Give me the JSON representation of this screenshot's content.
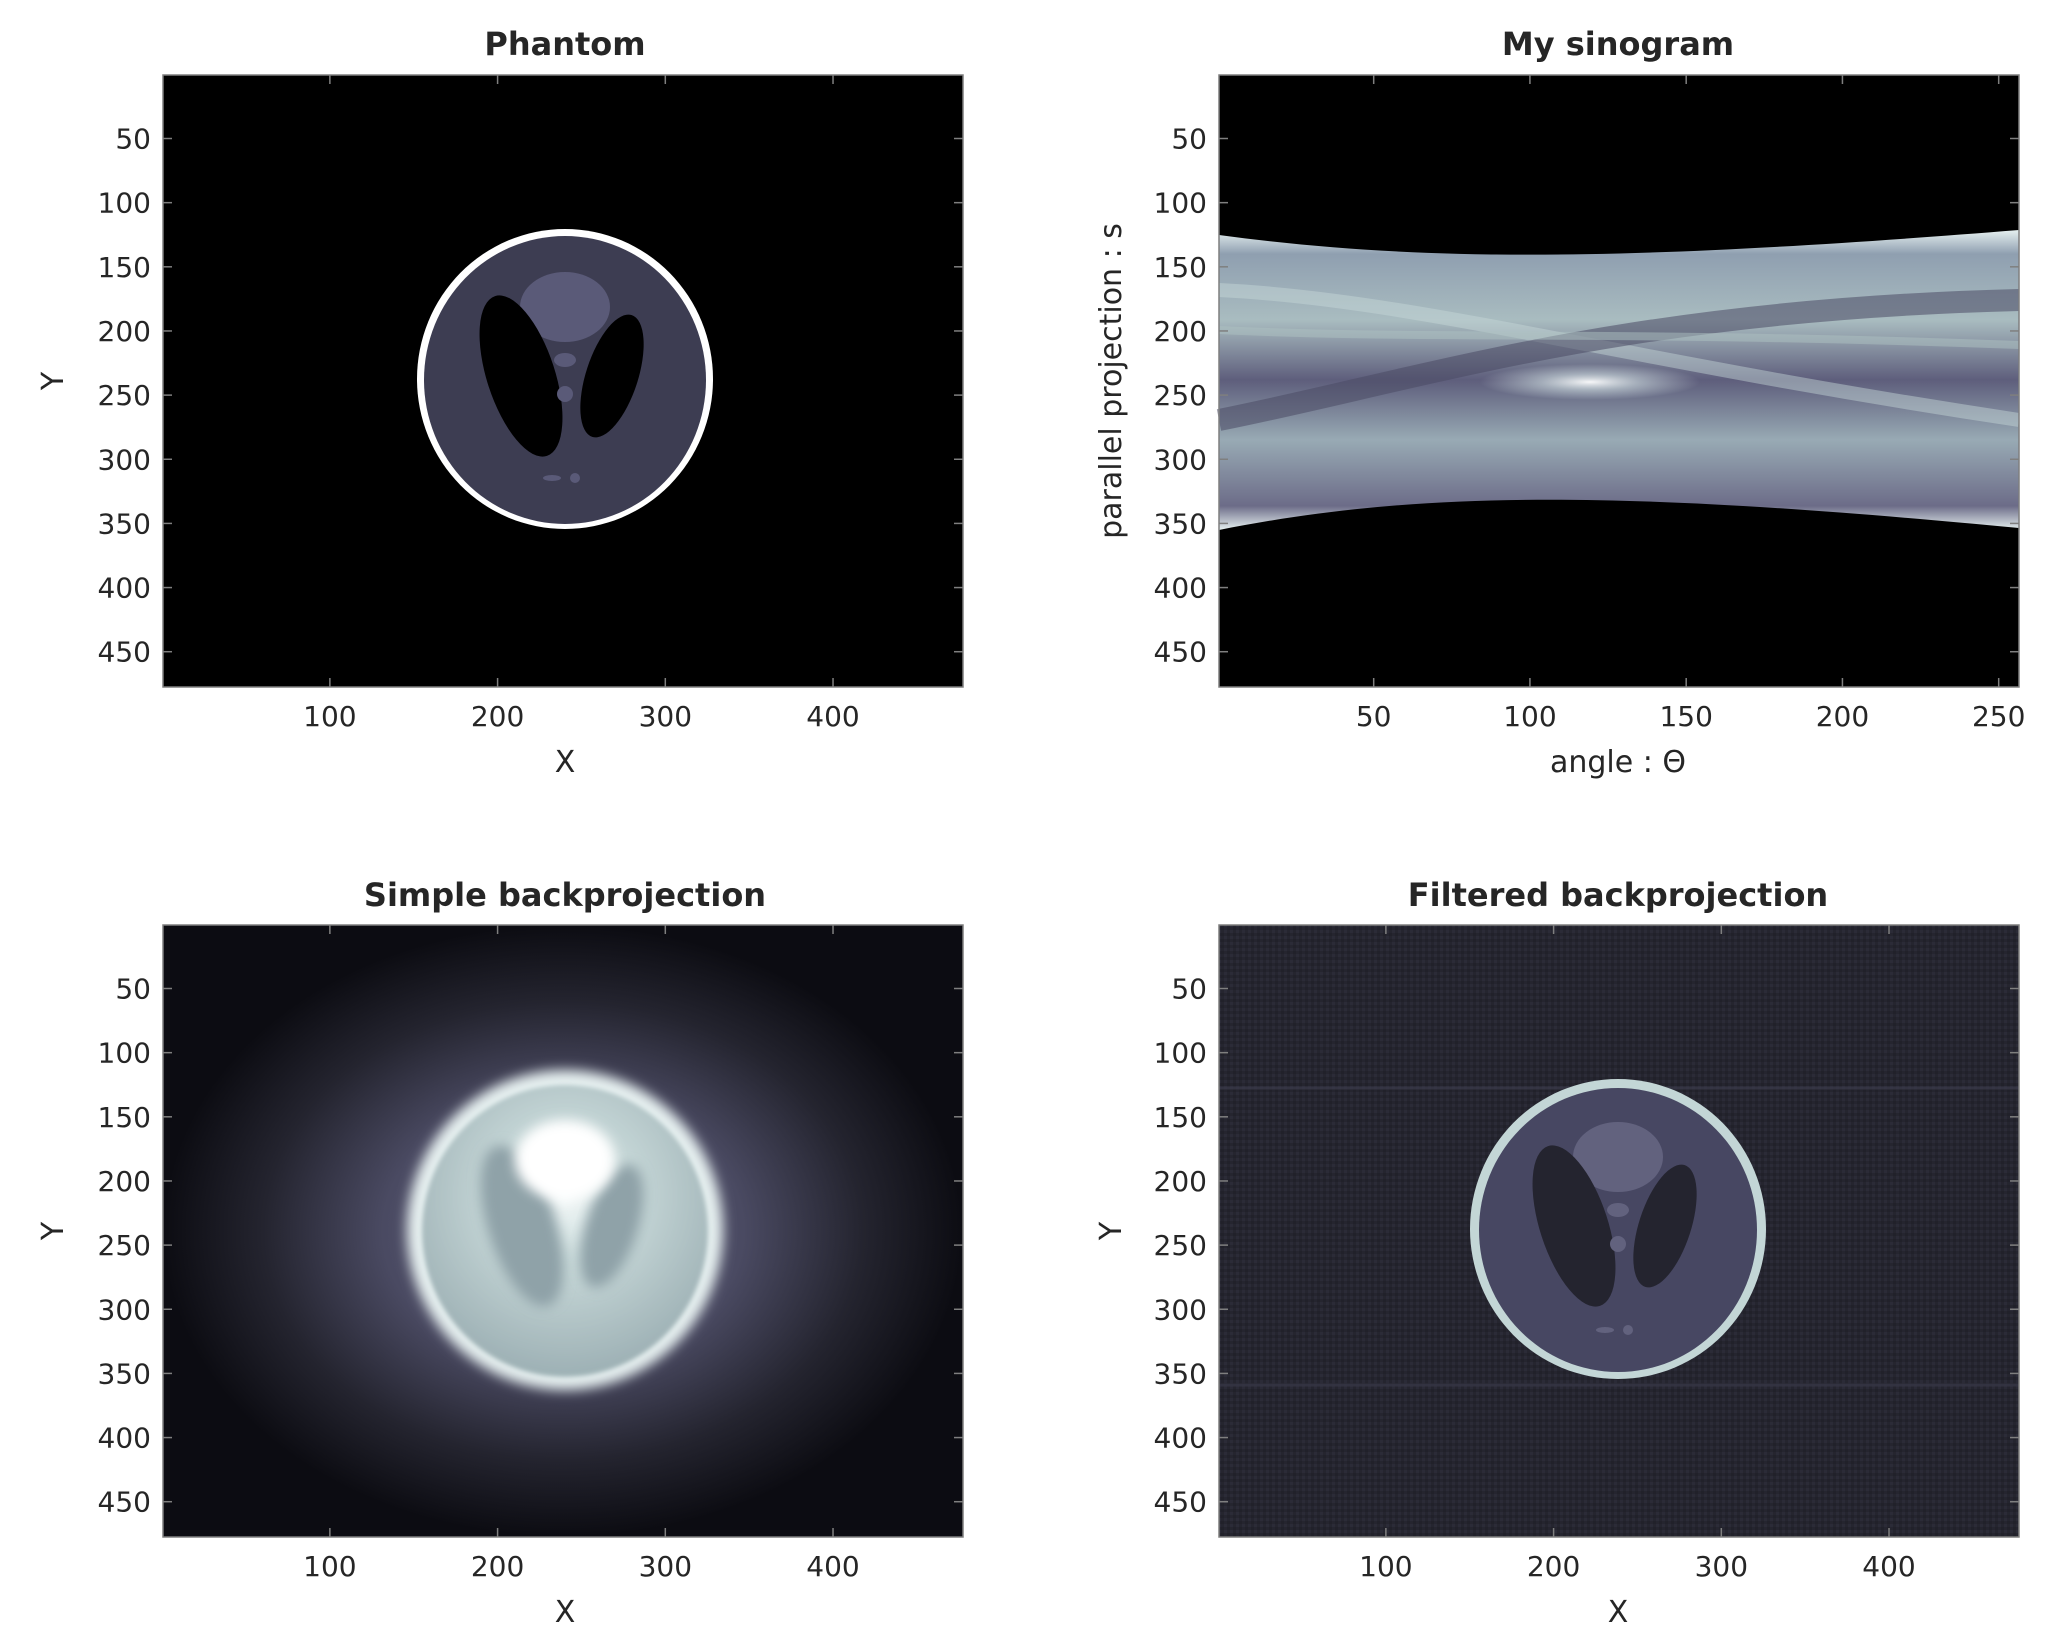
{
  "figure": {
    "colormap": "bone",
    "colors": {
      "background": "#ffffff",
      "axis_text": "#262626",
      "tick_mark": "#7f7f7f",
      "image_black": "#000000",
      "bone_dark": "#2e2e3f",
      "bone_mid": "#5c5c78",
      "bone_light": "#b7cccc",
      "bone_white": "#ffffff"
    }
  },
  "chart_data": [
    {
      "type": "heatmap",
      "panel": "phantom",
      "title": "Phantom",
      "xlabel": "X",
      "ylabel": "Y",
      "image_size": [
        477,
        477
      ],
      "xlim": [
        0.5,
        477.5
      ],
      "ylim": [
        0.5,
        477.5
      ],
      "y_reversed": true,
      "xticks": [
        100,
        200,
        300,
        400
      ],
      "yticks": [
        50,
        100,
        150,
        200,
        250,
        300,
        350,
        400,
        450
      ],
      "grid": false,
      "content": {
        "object": "Shepp-Logan head phantom",
        "center": [
          238,
          238
        ],
        "outer_radii": [
          88,
          118
        ]
      }
    },
    {
      "type": "heatmap",
      "panel": "sinogram",
      "title": "My sinogram",
      "xlabel": "angle : Θ",
      "ylabel": "parallel projection : s",
      "xlim": [
        0.5,
        256.5
      ],
      "ylim": [
        0.5,
        477.5
      ],
      "y_reversed": true,
      "xticks": [
        50,
        100,
        150,
        200,
        250
      ],
      "yticks": [
        50,
        100,
        150,
        200,
        250,
        300,
        350,
        400,
        450
      ],
      "grid": false,
      "content": {
        "band_upper_edge": [
          [
            0,
            125
          ],
          [
            128,
            150
          ],
          [
            256,
            123
          ]
        ],
        "band_lower_edge": [
          [
            0,
            354
          ],
          [
            128,
            326
          ],
          [
            256,
            354
          ]
        ],
        "peak_intensity_at": [
          128,
          248
        ]
      }
    },
    {
      "type": "heatmap",
      "panel": "simple-backprojection",
      "title": "Simple backprojection",
      "xlabel": "X",
      "ylabel": "Y",
      "xlim": [
        0.5,
        477.5
      ],
      "ylim": [
        0.5,
        477.5
      ],
      "y_reversed": true,
      "xticks": [
        100,
        200,
        300,
        400
      ],
      "yticks": [
        50,
        100,
        150,
        200,
        250,
        300,
        350,
        400,
        450
      ],
      "grid": false,
      "content": {
        "object": "blurred Shepp-Logan reconstruction",
        "center": [
          238,
          238
        ]
      }
    },
    {
      "type": "heatmap",
      "panel": "filtered-backprojection",
      "title": "Filtered backprojection",
      "xlabel": "X",
      "ylabel": "Y",
      "xlim": [
        0.5,
        477.5
      ],
      "ylim": [
        0.5,
        477.5
      ],
      "y_reversed": true,
      "xticks": [
        100,
        200,
        300,
        400
      ],
      "yticks": [
        50,
        100,
        150,
        200,
        250,
        300,
        350,
        400,
        450
      ],
      "grid": false,
      "content": {
        "object": "filtered Shepp-Logan reconstruction",
        "center": [
          238,
          238
        ]
      }
    }
  ]
}
